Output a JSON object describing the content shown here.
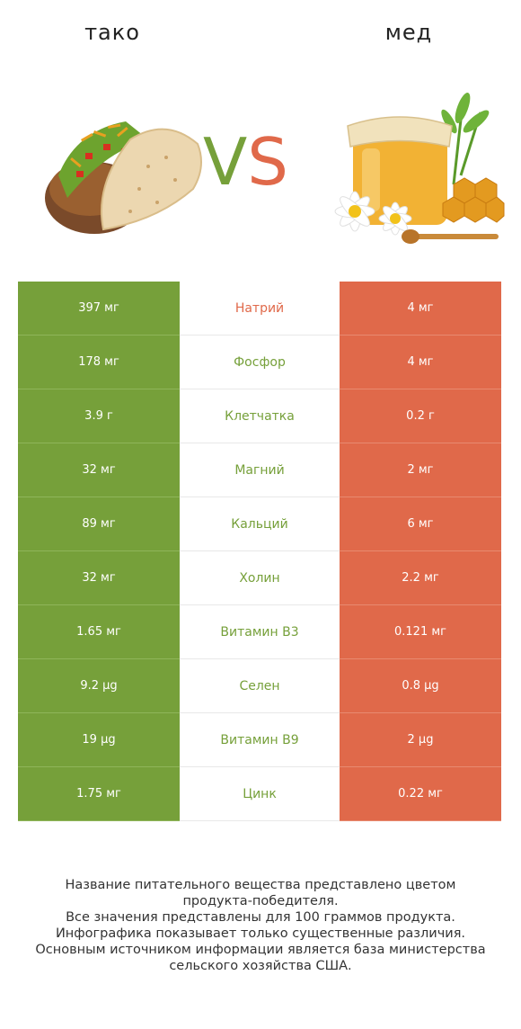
{
  "left_food": {
    "name": "тако",
    "image_icon": "taco-image"
  },
  "right_food": {
    "name": "мед",
    "image_icon": "honey-jar-image"
  },
  "vs": {
    "v": "V",
    "s": "S"
  },
  "colors": {
    "left": "#76a03a",
    "right": "#e0694a"
  },
  "rows": [
    {
      "left": "397 мг",
      "nutrient": "Натрий",
      "right": "4 мг",
      "winner": "right"
    },
    {
      "left": "178 мг",
      "nutrient": "Фосфор",
      "right": "4 мг",
      "winner": "left"
    },
    {
      "left": "3.9 г",
      "nutrient": "Клетчатка",
      "right": "0.2 г",
      "winner": "left"
    },
    {
      "left": "32 мг",
      "nutrient": "Магний",
      "right": "2 мг",
      "winner": "left"
    },
    {
      "left": "89 мг",
      "nutrient": "Кальций",
      "right": "6 мг",
      "winner": "left"
    },
    {
      "left": "32 мг",
      "nutrient": "Холин",
      "right": "2.2 мг",
      "winner": "left"
    },
    {
      "left": "1.65 мг",
      "nutrient": "Витамин B3",
      "right": "0.121 мг",
      "winner": "left"
    },
    {
      "left": "9.2 µg",
      "nutrient": "Селен",
      "right": "0.8 µg",
      "winner": "left"
    },
    {
      "left": "19 µg",
      "nutrient": "Витамин B9",
      "right": "2 µg",
      "winner": "left"
    },
    {
      "left": "1.75 мг",
      "nutrient": "Цинк",
      "right": "0.22 мг",
      "winner": "left"
    }
  ],
  "footer": {
    "line1": "Название питательного вещества представлено цветом",
    "line2": "продукта-победителя.",
    "line3": "Все значения представлены для 100 граммов продукта.",
    "line4": "Инфографика показывает только существенные различия.",
    "line5": "Основным источником информации является база министерства",
    "line6": "сельского хозяйства США."
  }
}
